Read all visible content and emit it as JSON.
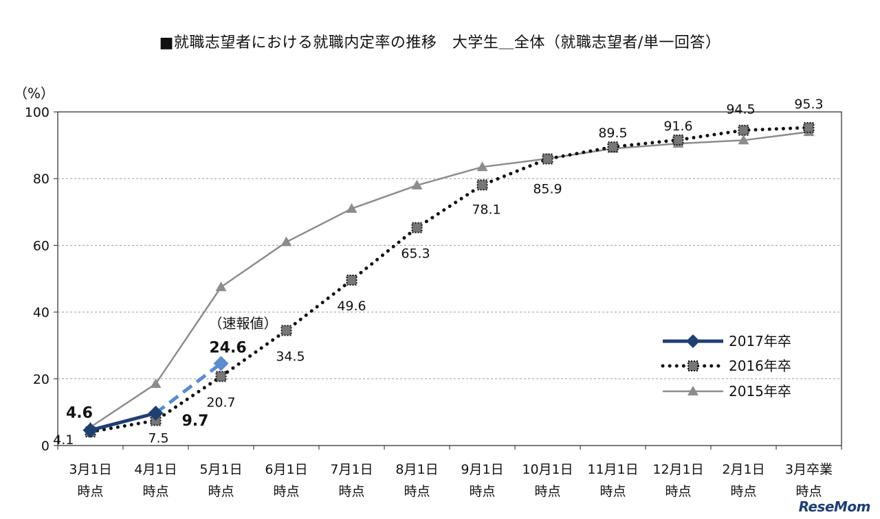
{
  "chart_data": {
    "type": "line",
    "title": "■就職志望者における就職内定率の推移　大学生＿全体（就職志望者/単一回答）",
    "ylabel": "（%）",
    "ylim": [
      0,
      100
    ],
    "yticks": [
      0,
      20,
      40,
      60,
      80,
      100
    ],
    "grid": true,
    "legend_position": "right",
    "categories": [
      [
        "3月1日",
        "時点"
      ],
      [
        "4月1日",
        "時点"
      ],
      [
        "5月1日",
        "時点"
      ],
      [
        "6月1日",
        "時点"
      ],
      [
        "7月1日",
        "時点"
      ],
      [
        "8月1日",
        "時点"
      ],
      [
        "9月1日",
        "時点"
      ],
      [
        "10月1日",
        "時点"
      ],
      [
        "11月1日",
        "時点"
      ],
      [
        "12月1日",
        "時点"
      ],
      [
        "2月1日",
        "時点"
      ],
      [
        "3月卒業",
        "時点"
      ]
    ],
    "series": [
      {
        "name": "2017年卒",
        "values": [
          4.6,
          9.7,
          24.6,
          null,
          null,
          null,
          null,
          null,
          null,
          null,
          null,
          null
        ],
        "labels": [
          "4.6",
          "9.7",
          "24.6",
          "",
          "",
          "",
          "",
          "",
          "",
          "",
          "",
          ""
        ],
        "color": "#1f3f73",
        "preliminary_color": "#5b8bd0",
        "marker": "diamond"
      },
      {
        "name": "2016年卒",
        "values": [
          4.1,
          7.5,
          20.7,
          34.5,
          49.6,
          65.3,
          78.1,
          85.9,
          89.5,
          91.6,
          94.5,
          95.3
        ],
        "labels": [
          "4.1",
          "7.5",
          "20.7",
          "34.5",
          "49.6",
          "65.3",
          "78.1",
          "85.9",
          "89.5",
          "91.6",
          "94.5",
          "95.3"
        ],
        "color": "#111111",
        "marker": "square"
      },
      {
        "name": "2015年卒",
        "values": [
          5.5,
          18.5,
          47.5,
          61.0,
          71.0,
          78.0,
          83.5,
          86.0,
          89.0,
          90.5,
          91.5,
          94.0
        ],
        "color": "#8c8c8c",
        "marker": "triangle"
      }
    ],
    "annotations": [
      {
        "text": "（速報値）"
      }
    ]
  },
  "watermark": "ReseMom"
}
